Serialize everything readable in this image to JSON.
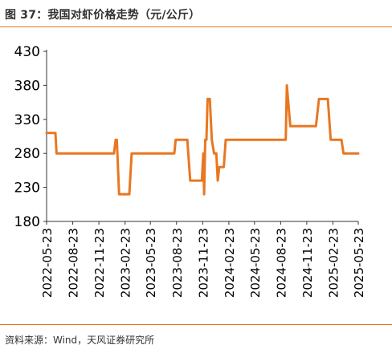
{
  "title": "图 37：我国对虾价格走势（元/公斤）",
  "source": "资料来源：Wind，天风证券研究所",
  "colors": {
    "line": "#E87722",
    "axis": "#333333",
    "rule": "#E87722"
  },
  "chart_data": {
    "type": "line",
    "title": "",
    "xlabel": "",
    "ylabel": "",
    "x_range": [
      "2022-05-23",
      "2025-05-23"
    ],
    "ylim": [
      180,
      430
    ],
    "yticks": [
      180,
      230,
      280,
      330,
      380,
      430
    ],
    "ytick_labels": [
      "180",
      "230",
      "280",
      "330",
      "380",
      "430"
    ],
    "xtick_labels": [
      "2022-05-23",
      "2022-08-23",
      "2022-11-23",
      "2023-02-23",
      "2023-05-23",
      "2023-08-23",
      "2023-11-23",
      "2024-02-23",
      "2024-05-23",
      "2024-08-23",
      "2024-11-23",
      "2025-02-23",
      "2025-05-23"
    ],
    "grid": false,
    "legend": null,
    "series": [
      {
        "x": [
          "2022-05-23",
          "2022-06-23",
          "2022-06-27",
          "2023-01-15",
          "2023-01-21",
          "2023-01-25",
          "2023-02-02",
          "2023-03-10",
          "2023-03-18",
          "2023-08-15",
          "2023-08-20",
          "2023-09-30",
          "2023-10-10",
          "2023-11-20",
          "2023-11-25",
          "2023-11-28",
          "2023-12-02",
          "2023-12-06",
          "2023-12-10",
          "2023-12-18",
          "2023-12-25",
          "2024-01-02",
          "2024-01-10",
          "2024-01-15",
          "2024-01-20",
          "2024-01-22",
          "2024-01-28",
          "2024-02-05",
          "2024-02-12",
          "2024-03-01",
          "2024-03-08",
          "2024-09-10",
          "2024-09-14",
          "2024-09-26",
          "2024-10-05",
          "2024-12-25",
          "2025-01-05",
          "2025-02-05",
          "2025-02-15",
          "2025-03-25",
          "2025-04-01",
          "2025-05-23"
        ],
        "values": [
          310,
          310,
          280,
          280,
          300,
          300,
          220,
          220,
          280,
          280,
          300,
          300,
          240,
          240,
          280,
          220,
          300,
          300,
          360,
          360,
          300,
          280,
          280,
          240,
          260,
          260,
          260,
          260,
          300,
          300,
          300,
          300,
          380,
          320,
          320,
          320,
          360,
          360,
          300,
          300,
          280,
          280
        ]
      }
    ]
  }
}
